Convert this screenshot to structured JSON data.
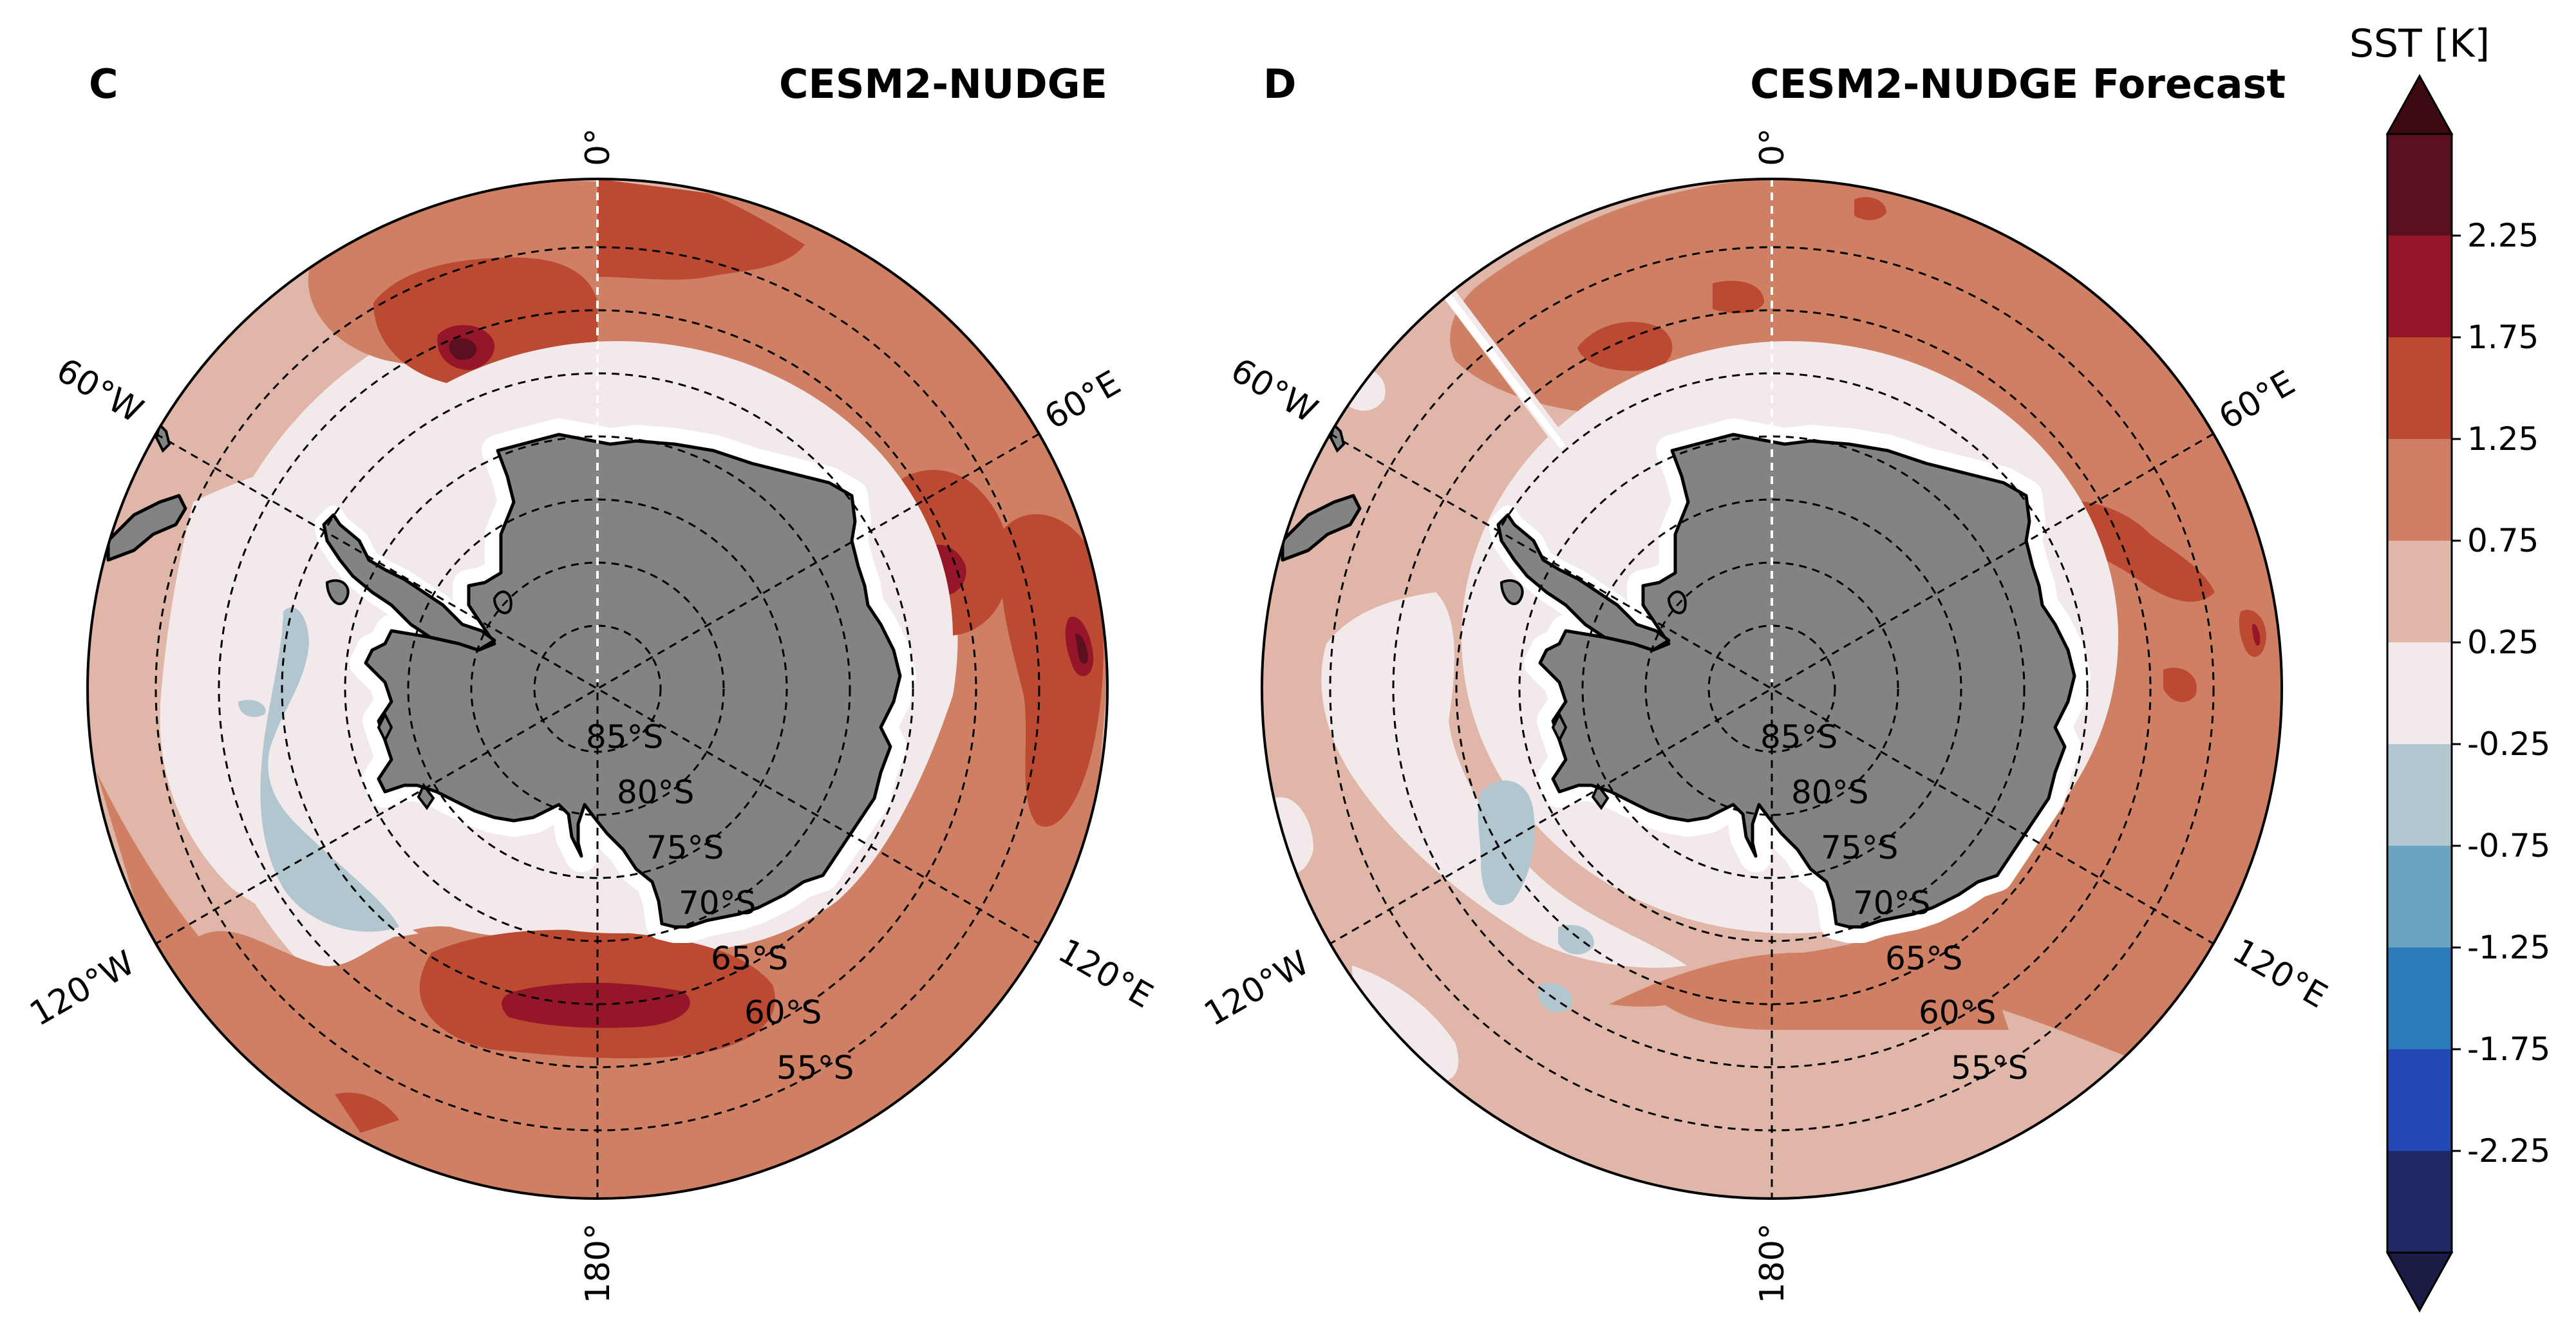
{
  "figure": {
    "colorbar": {
      "label": "SST [K]",
      "ticks": [
        "2.25",
        "1.75",
        "1.25",
        "0.75",
        "0.25",
        "-0.25",
        "-0.75",
        "-1.25",
        "-1.75",
        "-2.25"
      ],
      "levels_top_to_bottom": [
        {
          "range": "> 2.75",
          "color": "#3d0a12"
        },
        {
          "range": "2.25 to 2.75",
          "color": "#5c0f1f"
        },
        {
          "range": "1.75 to 2.25",
          "color": "#951628"
        },
        {
          "range": "1.25 to 1.75",
          "color": "#bc4a33"
        },
        {
          "range": "0.75 to 1.25",
          "color": "#cf8064"
        },
        {
          "range": "0.25 to 0.75",
          "color": "#dfb6a8"
        },
        {
          "range": "-0.25 to 0.25",
          "color": "#f2eaea"
        },
        {
          "range": "-0.75 to -0.25",
          "color": "#b1c6ce"
        },
        {
          "range": "-1.25 to -0.75",
          "color": "#69a4c1"
        },
        {
          "range": "-1.75 to -1.25",
          "color": "#2a7bbb"
        },
        {
          "range": "-2.25 to -1.75",
          "color": "#2148b4"
        },
        {
          "range": "-2.75 to -2.25",
          "color": "#212a66"
        },
        {
          "range": "< -2.75",
          "color": "#1a1c45"
        }
      ]
    },
    "panels": [
      {
        "letter": "C",
        "title": "CESM2-NUDGE",
        "lon_labels": {
          "top": "0°",
          "upper_left": "60°W",
          "upper_right": "60°E",
          "lower_left": "120°W",
          "lower_right": "120°E",
          "bottom": "180°"
        },
        "lat_labels": [
          "85°S",
          "80°S",
          "75°S",
          "70°S",
          "65°S",
          "60°S",
          "55°S"
        ]
      },
      {
        "letter": "D",
        "title": "CESM2-NUDGE Forecast",
        "lon_labels": {
          "top": "0°",
          "upper_left": "60°W",
          "upper_right": "60°E",
          "lower_left": "120°W",
          "lower_right": "120°E",
          "bottom": "180°"
        },
        "lat_labels": [
          "85°S",
          "80°S",
          "75°S",
          "70°S",
          "65°S",
          "60°S",
          "55°S"
        ]
      }
    ],
    "colors": {
      "land": "#838383",
      "ice_edge": "#ffffff"
    }
  }
}
